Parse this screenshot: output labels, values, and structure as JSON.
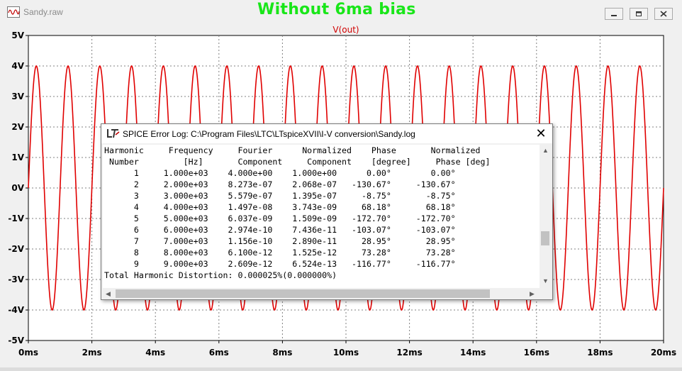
{
  "window": {
    "title": "Sandy.raw",
    "banner": "Without 6ma bias",
    "controls": [
      "minimize",
      "maximize",
      "close"
    ]
  },
  "chart_data": {
    "type": "line",
    "title": "V(out)",
    "xlabel": "",
    "ylabel": "",
    "xlim": [
      0,
      20
    ],
    "ylim": [
      -5,
      5
    ],
    "x_ticks": [
      "0ms",
      "2ms",
      "4ms",
      "6ms",
      "8ms",
      "10ms",
      "12ms",
      "14ms",
      "16ms",
      "18ms",
      "20ms"
    ],
    "y_ticks": [
      "5V",
      "4V",
      "3V",
      "2V",
      "1V",
      "0V",
      "-1V",
      "-2V",
      "-3V",
      "-4V",
      "-5V"
    ],
    "grid": true,
    "series": [
      {
        "name": "V(out)",
        "color": "#e00000",
        "function": "sine",
        "amplitude_V": 4,
        "frequency_Hz": 1000,
        "x_unit": "ms",
        "x_range": [
          0,
          20
        ]
      }
    ]
  },
  "dialog": {
    "title": "SPICE Error Log: C:\\Program Files\\LTC\\LTspiceXVII\\I-V conversion\\Sandy.log",
    "close_label": "✕",
    "header1": "Harmonic     Frequency     Fourier      Normalized    Phase       Normalized",
    "header2": " Number         [Hz]       Component     Component    [degree]     Phase [deg]",
    "rows": [
      [
        "1",
        "1.000e+03",
        "4.000e+00",
        "1.000e+00",
        "0.00°",
        "0.00°"
      ],
      [
        "2",
        "2.000e+03",
        "8.273e-07",
        "2.068e-07",
        "-130.67°",
        "-130.67°"
      ],
      [
        "3",
        "3.000e+03",
        "5.579e-07",
        "1.395e-07",
        "-8.75°",
        "-8.75°"
      ],
      [
        "4",
        "4.000e+03",
        "1.497e-08",
        "3.743e-09",
        "68.18°",
        "68.18°"
      ],
      [
        "5",
        "5.000e+03",
        "6.037e-09",
        "1.509e-09",
        "-172.70°",
        "-172.70°"
      ],
      [
        "6",
        "6.000e+03",
        "2.974e-10",
        "7.436e-11",
        "-103.07°",
        "-103.07°"
      ],
      [
        "7",
        "7.000e+03",
        "1.156e-10",
        "2.890e-11",
        "28.95°",
        "28.95°"
      ],
      [
        "8",
        "8.000e+03",
        "6.100e-12",
        "1.525e-12",
        "73.28°",
        "73.28°"
      ],
      [
        "9",
        "9.000e+03",
        "2.609e-12",
        "6.524e-13",
        "-116.77°",
        "-116.77°"
      ]
    ],
    "thd": "Total Harmonic Distortion: 0.000025%(0.000000%)"
  }
}
